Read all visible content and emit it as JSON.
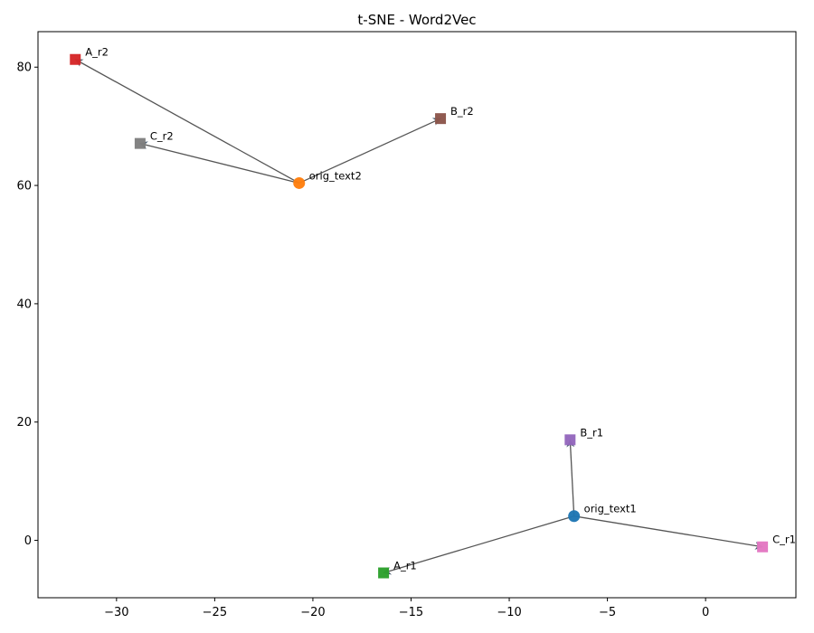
{
  "chart_data": {
    "type": "scatter",
    "title": "t-SNE - Word2Vec",
    "xlabel": "",
    "ylabel": "",
    "xlim": [
      -34,
      4.6
    ],
    "ylim": [
      -9.7,
      86
    ],
    "xticks": [
      -30,
      -25,
      -20,
      -15,
      -10,
      -5,
      0
    ],
    "yticks": [
      0,
      20,
      40,
      60,
      80
    ],
    "xtick_labels": [
      "−30",
      "−25",
      "−20",
      "−15",
      "−10",
      "−5",
      "0"
    ],
    "ytick_labels": [
      "0",
      "20",
      "40",
      "60",
      "80"
    ],
    "grid": false,
    "arrow_color": "#555555",
    "points": [
      {
        "label": "orig_text1",
        "x": -6.7,
        "y": 4.1,
        "marker": "circle",
        "color": "#1f77b4"
      },
      {
        "label": "orig_text2",
        "x": -20.7,
        "y": 60.4,
        "marker": "circle",
        "color": "#ff7f0e"
      },
      {
        "label": "A_r1",
        "x": -16.4,
        "y": -5.5,
        "marker": "square",
        "color": "#2ca02c"
      },
      {
        "label": "A_r2",
        "x": -32.1,
        "y": 81.3,
        "marker": "square",
        "color": "#d62728"
      },
      {
        "label": "B_r1",
        "x": -6.9,
        "y": 17.0,
        "marker": "square",
        "color": "#9467bd"
      },
      {
        "label": "B_r2",
        "x": -13.5,
        "y": 71.3,
        "marker": "square",
        "color": "#8c564b"
      },
      {
        "label": "C_r1",
        "x": 2.9,
        "y": -1.1,
        "marker": "square",
        "color": "#e377c2"
      },
      {
        "label": "C_r2",
        "x": -28.8,
        "y": 67.1,
        "marker": "square",
        "color": "#7f7f7f"
      }
    ],
    "arrows": [
      {
        "from": "orig_text1",
        "to": "A_r1"
      },
      {
        "from": "orig_text1",
        "to": "B_r1"
      },
      {
        "from": "orig_text1",
        "to": "C_r1"
      },
      {
        "from": "orig_text2",
        "to": "A_r2"
      },
      {
        "from": "orig_text2",
        "to": "B_r2"
      },
      {
        "from": "orig_text2",
        "to": "C_r2"
      }
    ]
  }
}
